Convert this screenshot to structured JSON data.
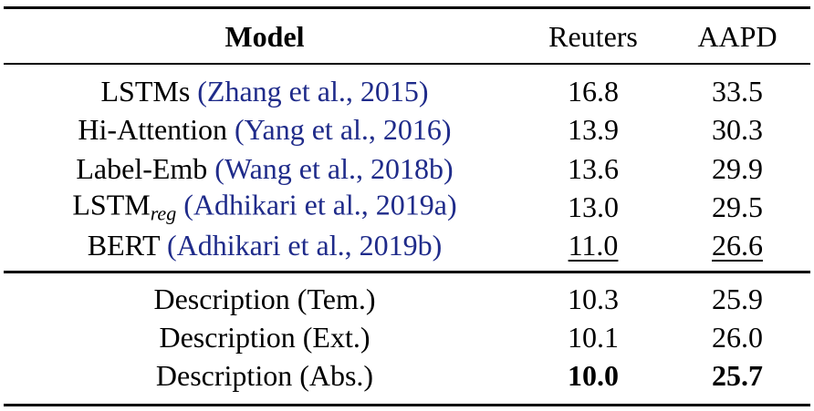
{
  "table": {
    "header": [
      "Model",
      "Reuters",
      "AAPD"
    ],
    "groups": [
      [
        {
          "model": "LSTMs",
          "citation": "(Zhang et al., 2015)",
          "values": [
            "16.8",
            "33.5"
          ]
        },
        {
          "model": "Hi-Attention",
          "citation": "(Yang et al., 2016)",
          "values": [
            "13.9",
            "30.3"
          ]
        },
        {
          "model": "Label-Emb",
          "citation": "(Wang et al., 2018b)",
          "values": [
            "13.6",
            "29.9"
          ]
        },
        {
          "model": "LSTM",
          "subscript": "reg",
          "citation": "(Adhikari et al., 2019a)",
          "values": [
            "13.0",
            "29.5"
          ]
        },
        {
          "model": "BERT",
          "citation": "(Adhikari et al., 2019b)",
          "values": [
            "11.0",
            "26.6"
          ],
          "emphasis": "underline"
        }
      ],
      [
        {
          "model": "Description (Tem.)",
          "values": [
            "10.3",
            "25.9"
          ]
        },
        {
          "model": "Description (Ext.)",
          "values": [
            "10.1",
            "26.0"
          ]
        },
        {
          "model": "Description (Abs.)",
          "values": [
            "10.0",
            "25.7"
          ],
          "emphasis": "bold"
        }
      ]
    ]
  }
}
